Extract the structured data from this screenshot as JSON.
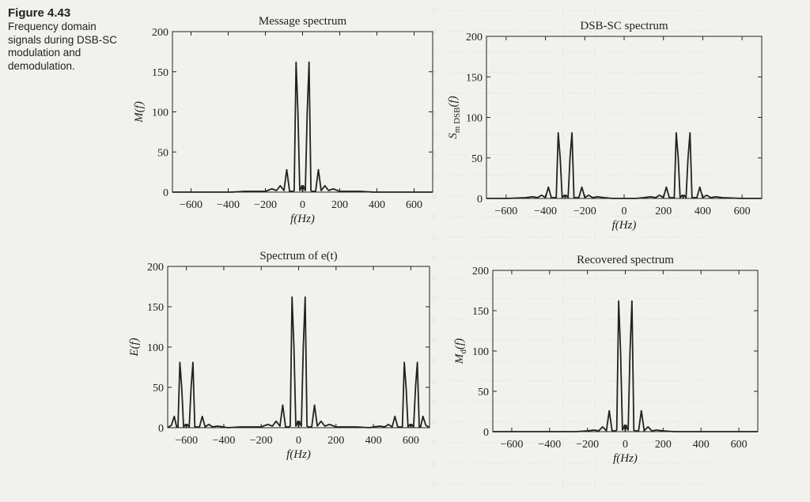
{
  "figure": {
    "label": "Figure 4.43",
    "caption": "Frequency domain signals during DSB-SC modulation and demodulation."
  },
  "colors": {
    "background": "#f1f1ee",
    "ink": "#222222"
  },
  "chart_data": [
    {
      "type": "line",
      "title": "Message spectrum",
      "xlabel": "f(Hz)",
      "ylabel": "M(f)",
      "xlim": [
        -700,
        700
      ],
      "ylim": [
        0,
        200
      ],
      "xticks": [
        -600,
        -400,
        -200,
        0,
        200,
        400,
        600
      ],
      "yticks": [
        0,
        50,
        100,
        150,
        200
      ],
      "xtick_labels": [
        "−600",
        "−400",
        "−200",
        "0",
        "200",
        "400",
        "600"
      ],
      "ytick_labels": [
        "0",
        "50",
        "100",
        "150",
        "200"
      ],
      "series": [
        {
          "x": [
            -700,
            -380,
            -310,
            -250,
            -200,
            -165,
            -140,
            -120,
            -100,
            -85,
            -70,
            -52,
            -45,
            -35,
            -25,
            -15,
            -8,
            -4,
            0,
            4,
            8,
            15,
            25,
            35,
            45,
            52,
            70,
            85,
            100,
            120,
            140,
            165,
            200,
            250,
            310,
            380,
            700
          ],
          "y": [
            0,
            0,
            1,
            1,
            1,
            4,
            2,
            8,
            2,
            28,
            1,
            1,
            2,
            162,
            100,
            2,
            5,
            8,
            1,
            8,
            5,
            2,
            100,
            162,
            2,
            1,
            1,
            28,
            2,
            8,
            2,
            4,
            1,
            1,
            1,
            0,
            0
          ]
        }
      ]
    },
    {
      "type": "line",
      "title": "DSB-SC spectrum",
      "xlabel": "f(Hz)",
      "ylabel": "S_m DSB(f)",
      "ylabel_main": "S",
      "ylabel_sub": "m DSB",
      "ylabel_tail": "(f)",
      "xlim": [
        -700,
        700
      ],
      "ylim": [
        0,
        200
      ],
      "xticks": [
        -600,
        -400,
        -200,
        0,
        200,
        400,
        600
      ],
      "yticks": [
        0,
        50,
        100,
        150,
        200
      ],
      "xtick_labels": [
        "−600",
        "−400",
        "−200",
        "0",
        "200",
        "400",
        "600"
      ],
      "ytick_labels": [
        "0",
        "50",
        "100",
        "150",
        "200"
      ],
      "series": [
        {
          "x": [
            -700,
            -600,
            -500,
            -465,
            -440,
            -420,
            -400,
            -385,
            -370,
            -352,
            -345,
            -335,
            -325,
            -315,
            -308,
            -304,
            -300,
            -296,
            -292,
            -285,
            -275,
            -265,
            -255,
            -248,
            -230,
            -215,
            -200,
            -180,
            -160,
            -135,
            -100,
            -60,
            0,
            60,
            100,
            135,
            160,
            180,
            200,
            215,
            230,
            248,
            255,
            265,
            275,
            285,
            292,
            296,
            300,
            304,
            308,
            315,
            325,
            335,
            345,
            352,
            370,
            385,
            400,
            420,
            440,
            465,
            500,
            600,
            700
          ],
          "y": [
            0,
            0,
            1,
            2,
            1,
            4,
            1,
            14,
            1,
            1,
            1,
            81,
            50,
            1,
            3,
            4,
            1,
            4,
            3,
            1,
            50,
            81,
            1,
            1,
            1,
            14,
            1,
            4,
            1,
            2,
            1,
            0,
            0,
            0,
            1,
            2,
            1,
            4,
            1,
            14,
            1,
            1,
            1,
            81,
            50,
            1,
            3,
            4,
            1,
            4,
            3,
            1,
            50,
            81,
            1,
            1,
            1,
            14,
            1,
            4,
            1,
            2,
            1,
            0,
            0
          ]
        }
      ]
    },
    {
      "type": "line",
      "title": "Spectrum of e(t)",
      "xlabel": "f(Hz)",
      "ylabel": "E(f)",
      "xlim": [
        -700,
        700
      ],
      "ylim": [
        0,
        200
      ],
      "xticks": [
        -600,
        -400,
        -200,
        0,
        200,
        400,
        600
      ],
      "yticks": [
        0,
        50,
        100,
        150,
        200
      ],
      "xtick_labels": [
        "−600",
        "−400",
        "−200",
        "0",
        "200",
        "400",
        "600"
      ],
      "ytick_labels": [
        "0",
        "50",
        "100",
        "150",
        "200"
      ],
      "series": [
        {
          "x": [
            -700,
            -680,
            -665,
            -652,
            -645,
            -635,
            -625,
            -615,
            -608,
            -604,
            -600,
            -596,
            -592,
            -585,
            -575,
            -565,
            -555,
            -548,
            -530,
            -515,
            -500,
            -480,
            -460,
            -435,
            -400,
            -380,
            -310,
            -250,
            -200,
            -165,
            -140,
            -120,
            -100,
            -85,
            -70,
            -52,
            -45,
            -35,
            -25,
            -15,
            -8,
            -4,
            0,
            4,
            8,
            15,
            25,
            35,
            45,
            52,
            70,
            85,
            100,
            120,
            140,
            165,
            200,
            250,
            310,
            380,
            400,
            435,
            460,
            480,
            500,
            515,
            530,
            548,
            555,
            565,
            575,
            585,
            592,
            596,
            600,
            604,
            608,
            615,
            625,
            635,
            645,
            652,
            665,
            680,
            700
          ],
          "y": [
            0,
            3,
            14,
            1,
            1,
            81,
            50,
            1,
            3,
            4,
            1,
            4,
            3,
            1,
            50,
            81,
            1,
            1,
            1,
            14,
            1,
            4,
            1,
            2,
            1,
            0,
            1,
            1,
            1,
            4,
            2,
            8,
            2,
            28,
            1,
            1,
            2,
            162,
            100,
            2,
            5,
            8,
            1,
            8,
            5,
            2,
            100,
            162,
            2,
            1,
            1,
            28,
            2,
            8,
            2,
            4,
            1,
            1,
            1,
            0,
            1,
            2,
            1,
            4,
            1,
            14,
            1,
            1,
            1,
            81,
            50,
            1,
            3,
            4,
            1,
            4,
            3,
            1,
            50,
            81,
            1,
            1,
            14,
            3,
            0
          ]
        }
      ]
    },
    {
      "type": "line",
      "title": "Recovered spectrum",
      "xlabel": "f(Hz)",
      "ylabel": "M_d(f)",
      "ylabel_main": "M",
      "ylabel_sub": "d",
      "ylabel_tail": "(f)",
      "xlim": [
        -700,
        700
      ],
      "ylim": [
        0,
        200
      ],
      "xticks": [
        -600,
        -400,
        -200,
        0,
        200,
        400,
        600
      ],
      "yticks": [
        0,
        50,
        100,
        150,
        200
      ],
      "xtick_labels": [
        "−600",
        "−400",
        "−200",
        "0",
        "200",
        "400",
        "600"
      ],
      "ytick_labels": [
        "0",
        "50",
        "100",
        "150",
        "200"
      ],
      "series": [
        {
          "x": [
            -700,
            -400,
            -330,
            -260,
            -200,
            -165,
            -140,
            -120,
            -100,
            -85,
            -70,
            -52,
            -45,
            -35,
            -25,
            -15,
            -8,
            -4,
            0,
            4,
            8,
            15,
            25,
            35,
            45,
            52,
            70,
            85,
            100,
            120,
            140,
            165,
            200,
            260,
            330,
            400,
            700
          ],
          "y": [
            0,
            0,
            0,
            0,
            1,
            2,
            1,
            6,
            1,
            26,
            1,
            1,
            2,
            162,
            100,
            2,
            5,
            8,
            1,
            8,
            5,
            2,
            100,
            162,
            2,
            1,
            1,
            26,
            1,
            6,
            1,
            2,
            1,
            0,
            0,
            0,
            0
          ]
        }
      ]
    }
  ]
}
